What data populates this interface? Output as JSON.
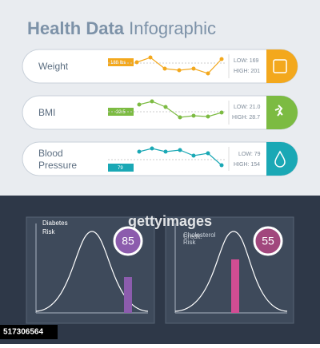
{
  "header": {
    "title_bold": "Health Data",
    "title_light": "Infographic"
  },
  "cards": [
    {
      "label": "Weight",
      "badge": "188 lbs",
      "low": "LOW: 169",
      "high": "HIGH: 201"
    },
    {
      "label": "BMI",
      "badge": "22.5",
      "low": "LOW: 21.0",
      "high": "HIGH: 28.7"
    },
    {
      "label_line1": "Blood",
      "label_line2": "Pressure",
      "badge": "79",
      "low": "LOW: 79",
      "high": "HIGH: 154"
    }
  ],
  "panels": [
    {
      "line1": "Diabetes",
      "line2": "Risk",
      "score": "85"
    },
    {
      "line1": "Cholesterol",
      "line2": "Risk",
      "score": "55"
    }
  ],
  "watermark": {
    "brand": "gettyimages",
    "credit": "Credit:",
    "id": "517306564"
  }
}
